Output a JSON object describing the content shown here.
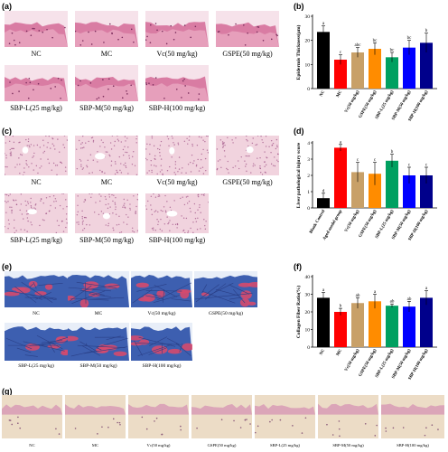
{
  "panels": {
    "a": {
      "letter": "(a)",
      "captions": [
        "NC",
        "MC",
        "Vc(50 mg/kg)",
        "GSPE(50 mg/kg)",
        "SBP-L(25 mg/kg)",
        "SBP-M(50 mg/kg)",
        "SBP-H(100 mg/kg)"
      ]
    },
    "b": {
      "letter": "(b)"
    },
    "c": {
      "letter": "(c)",
      "captions": [
        "NC",
        "MC",
        "Vc(50 mg/kg)",
        "GSPE(50 mg/kg)",
        "SBP-L(25 mg/kg)",
        "SBP-M(50 mg/kg)",
        "SBP-H(100 mg/kg)"
      ]
    },
    "d": {
      "letter": "(d)"
    },
    "e": {
      "letter": "(e)",
      "captions": [
        "NC",
        "MC",
        "Vc(50 mg/kg)",
        "GSPE(50 mg/kg)",
        "SBP-L(25 mg/kg)",
        "SBP-M(50 mg/kg)",
        "SBP-H(100 mg/kg)"
      ]
    },
    "f": {
      "letter": "(f)"
    },
    "g": {
      "letter": "(g)",
      "captions": [
        "NC",
        "MC",
        "Vc(50 mg/kg)",
        "GSPE(50 mg/kg)",
        "SBP-L(25 mg/kg)",
        "SBP-M(50 mg/kg)",
        "SBP-H(100 mg/kg)"
      ]
    }
  },
  "chart_data": [
    {
      "id": "b",
      "type": "bar",
      "ylabel": "Epidermis Thickness(μm)",
      "ylim": [
        0,
        30
      ],
      "yticks": [
        0,
        10,
        20,
        30
      ],
      "categories": [
        "NC",
        "MC",
        "Vc(50 mg/kg)",
        "GSPE(50 mg/kg)",
        "SBP-L(25 mg/kg)",
        "SBP-M(50 mg/kg)",
        "SBP-H(100 mg/kg)"
      ],
      "values": [
        23.5,
        12,
        15,
        16.5,
        13,
        17,
        19
      ],
      "errors": [
        2.5,
        2,
        2,
        2.5,
        2,
        3,
        4
      ],
      "sig": [
        "a",
        "c",
        "abc",
        "bc",
        "bc",
        "bc",
        "b"
      ],
      "colors": [
        "#000000",
        "#ff0000",
        "#c8a068",
        "#ff8c00",
        "#00a060",
        "#0000ff",
        "#00008b"
      ]
    },
    {
      "id": "d",
      "type": "bar",
      "ylabel": "Liver pathological injury score",
      "ylim": [
        0,
        4
      ],
      "yticks": [
        0,
        1,
        2,
        3,
        4
      ],
      "categories": [
        "Blank Control",
        "Aged model group",
        "Vc(50 mg/kg)",
        "GSPE(50 mg/kg)",
        "SBP-L(25 mg/kg)",
        "SBP-M(50 mg/kg)",
        "SBP-H(100 mg/kg)"
      ],
      "values": [
        0.6,
        3.7,
        2.2,
        2.1,
        2.9,
        2.0,
        2.0
      ],
      "errors": [
        0.3,
        0.2,
        0.6,
        0.7,
        0.4,
        0.5,
        0.5
      ],
      "sig": [
        "d",
        "a",
        "c",
        "c",
        "b",
        "c",
        "c"
      ],
      "colors": [
        "#000000",
        "#ff0000",
        "#c8a068",
        "#ff8c00",
        "#00a060",
        "#0000ff",
        "#00008b"
      ]
    },
    {
      "id": "f",
      "type": "bar",
      "ylabel": "Collagen Fiber Ratio(%)",
      "ylim": [
        0,
        40
      ],
      "yticks": [
        0,
        10,
        20,
        30,
        40
      ],
      "categories": [
        "NC",
        "MC",
        "Vc(50 mg/kg)",
        "GSPE(50 mg/kg)",
        "SBP-L(25 mg/kg)",
        "SBP-M(50 mg/kg)",
        "SBP-H(100 mg/kg)"
      ],
      "values": [
        28,
        20,
        25,
        26,
        23.5,
        23,
        28
      ],
      "errors": [
        3,
        2,
        3,
        4,
        1,
        3,
        4
      ],
      "sig": [
        "a",
        "b",
        "ab",
        "a",
        "ab",
        "ab",
        "a"
      ],
      "colors": [
        "#000000",
        "#ff0000",
        "#c8a068",
        "#ff8c00",
        "#00a060",
        "#0000ff",
        "#00008b"
      ]
    }
  ],
  "colors": {
    "he_bg": "#f1d3de",
    "he_tissue": "#d46a96",
    "mt_blue": "#3d5fb0",
    "mt_red": "#d44a6e",
    "pas_bg": "#ecdcc6",
    "pas_pink": "#dba5b8"
  }
}
